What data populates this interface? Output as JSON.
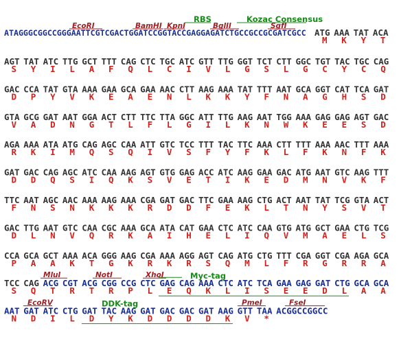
{
  "colors": {
    "dna_plain": "#333333",
    "dna_highlight": "#1a2f8f",
    "protein": "#d0211c",
    "enzyme": "#a11f24",
    "feature": "#1a8a1a"
  },
  "top_features": [
    {
      "label": "RBS"
    },
    {
      "label": "Kozac Consensus"
    }
  ],
  "top_enzymes": [
    {
      "label": "EcoRI"
    },
    {
      "label": "BamHI"
    },
    {
      "label": "KpnI"
    },
    {
      "label": "BglII"
    },
    {
      "label": "SgfI"
    }
  ],
  "header_sequence": "ATAGGGCGGCCGGGAATTCGTCGACTGGATCCGGTACCGAGGAGATCTGCCGCCGCGATCGCC",
  "header_codons": [
    {
      "codon": "ATG",
      "aa": "M"
    },
    {
      "codon": "AAA",
      "aa": "K"
    },
    {
      "codon": "TAT",
      "aa": "Y"
    },
    {
      "codon": "ACA",
      "aa": "T"
    }
  ],
  "rows": [
    {
      "codons": [
        "AGT",
        "TAT",
        "ATC",
        "TTG",
        "GCT",
        "TTT",
        "CAG",
        "CTC",
        "TGC",
        "ATC",
        "GTT",
        "TTG",
        "GGT",
        "TCT",
        "CTT",
        "GGC",
        "TGT",
        "TAC",
        "TGC",
        "CAG"
      ],
      "aa": [
        "S",
        "Y",
        "I",
        "L",
        "A",
        "F",
        "Q",
        "L",
        "C",
        "I",
        "V",
        "L",
        "G",
        "S",
        "L",
        "G",
        "C",
        "Y",
        "C",
        "Q"
      ]
    },
    {
      "codons": [
        "GAC",
        "CCA",
        "TAT",
        "GTA",
        "AAA",
        "GAA",
        "GCA",
        "GAA",
        "AAC",
        "CTT",
        "AAG",
        "AAA",
        "TAT",
        "TTT",
        "AAT",
        "GCA",
        "GGT",
        "CAT",
        "TCA",
        "GAT"
      ],
      "aa": [
        "D",
        "P",
        "Y",
        "V",
        "K",
        "E",
        "A",
        "E",
        "N",
        "L",
        "K",
        "K",
        "Y",
        "F",
        "N",
        "A",
        "G",
        "H",
        "S",
        "D"
      ]
    },
    {
      "codons": [
        "GTA",
        "GCG",
        "GAT",
        "AAT",
        "GGA",
        "ACT",
        "CTT",
        "TTC",
        "TTA",
        "GGC",
        "ATT",
        "TTG",
        "AAG",
        "AAT",
        "TGG",
        "AAA",
        "GAG",
        "GAG",
        "AGT",
        "GAC"
      ],
      "aa": [
        "V",
        "A",
        "D",
        "N",
        "G",
        "T",
        "L",
        "F",
        "L",
        "G",
        "I",
        "L",
        "K",
        "N",
        "W",
        "K",
        "E",
        "E",
        "S",
        "D"
      ]
    },
    {
      "codons": [
        "AGA",
        "AAA",
        "ATA",
        "ATG",
        "CAG",
        "AGC",
        "CAA",
        "ATT",
        "GTC",
        "TCC",
        "TTT",
        "TAC",
        "TTC",
        "AAA",
        "CTT",
        "TTT",
        "AAA",
        "AAC",
        "TTT",
        "AAA"
      ],
      "aa": [
        "R",
        "K",
        "I",
        "M",
        "Q",
        "S",
        "Q",
        "I",
        "V",
        "S",
        "F",
        "Y",
        "F",
        "K",
        "L",
        "F",
        "K",
        "N",
        "F",
        "K"
      ]
    },
    {
      "codons": [
        "GAT",
        "GAC",
        "CAG",
        "AGC",
        "ATC",
        "CAA",
        "AAG",
        "AGT",
        "GTG",
        "GAG",
        "ACC",
        "ATC",
        "AAG",
        "GAA",
        "GAC",
        "ATG",
        "AAT",
        "GTC",
        "AAG",
        "TTT"
      ],
      "aa": [
        "D",
        "D",
        "Q",
        "S",
        "I",
        "Q",
        "K",
        "S",
        "V",
        "E",
        "T",
        "I",
        "K",
        "E",
        "D",
        "M",
        "N",
        "V",
        "K",
        "F"
      ]
    },
    {
      "codons": [
        "TTC",
        "AAT",
        "AGC",
        "AAC",
        "AAA",
        "AAG",
        "AAA",
        "CGA",
        "GAT",
        "GAC",
        "TTC",
        "GAA",
        "AAG",
        "CTG",
        "ACT",
        "AAT",
        "TAT",
        "TCG",
        "GTA",
        "ACT"
      ],
      "aa": [
        "F",
        "N",
        "S",
        "N",
        "K",
        "K",
        "K",
        "R",
        "D",
        "D",
        "F",
        "E",
        "K",
        "L",
        "T",
        "N",
        "Y",
        "S",
        "V",
        "T"
      ]
    },
    {
      "codons": [
        "GAC",
        "TTG",
        "AAT",
        "GTC",
        "CAA",
        "CGC",
        "AAA",
        "GCA",
        "ATA",
        "CAT",
        "GAA",
        "CTC",
        "ATC",
        "CAA",
        "GTG",
        "ATG",
        "GCT",
        "GAA",
        "CTG",
        "TCG"
      ],
      "aa": [
        "D",
        "L",
        "N",
        "V",
        "Q",
        "R",
        "K",
        "A",
        "I",
        "H",
        "E",
        "L",
        "I",
        "Q",
        "V",
        "M",
        "A",
        "E",
        "L",
        "S"
      ]
    },
    {
      "codons": [
        "CCA",
        "GCA",
        "GCT",
        "AAA",
        "ACA",
        "GGG",
        "AAG",
        "CGA",
        "AAA",
        "AGG",
        "AGT",
        "CAG",
        "ATG",
        "CTG",
        "TTT",
        "CGA",
        "GGT",
        "CGA",
        "AGA",
        "GCA"
      ],
      "aa": [
        "P",
        "A",
        "A",
        "K",
        "T",
        "G",
        "K",
        "R",
        "K",
        "R",
        "S",
        "Q",
        "M",
        "L",
        "F",
        "R",
        "G",
        "R",
        "R",
        "A"
      ]
    },
    {
      "codons": [
        "TCC",
        "CAG",
        "ACG",
        "CGT",
        "ACG",
        "CGG",
        "CCG",
        "CTC",
        "GAG",
        "CAG",
        "AAA",
        "CTC",
        "ATC",
        "TCA",
        "GAA",
        "GAG",
        "GAT",
        "CTG",
        "GCA",
        "GCA"
      ],
      "aa": [
        "S",
        "Q",
        "T",
        "R",
        "T",
        "R",
        "P",
        "L",
        "E",
        "Q",
        "K",
        "L",
        "I",
        "S",
        "E",
        "E",
        "D",
        "L",
        "A",
        "A"
      ],
      "features": [
        {
          "label": "Myc-tag"
        }
      ],
      "enzymes": [
        {
          "label": "MluI"
        },
        {
          "label": "NotI"
        },
        {
          "label": "XhoI"
        }
      ]
    },
    {
      "codons": [
        "AAT",
        "GAT",
        "ATC",
        "CTG",
        "GAT",
        "TAC",
        "AAG",
        "GAT",
        "GAC",
        "GAC",
        "GAT",
        "AAG",
        "GTT",
        "TAA"
      ],
      "aa": [
        "N",
        "D",
        "I",
        "L",
        "D",
        "Y",
        "K",
        "D",
        "D",
        "D",
        "D",
        "K",
        "V",
        "*"
      ],
      "tail": "ACGGCCGGCC",
      "features": [
        {
          "label": "DDK-tag"
        }
      ],
      "enzymes": [
        {
          "label": "EcoRV"
        },
        {
          "label": "PmeI"
        },
        {
          "label": "FseI"
        }
      ]
    }
  ]
}
